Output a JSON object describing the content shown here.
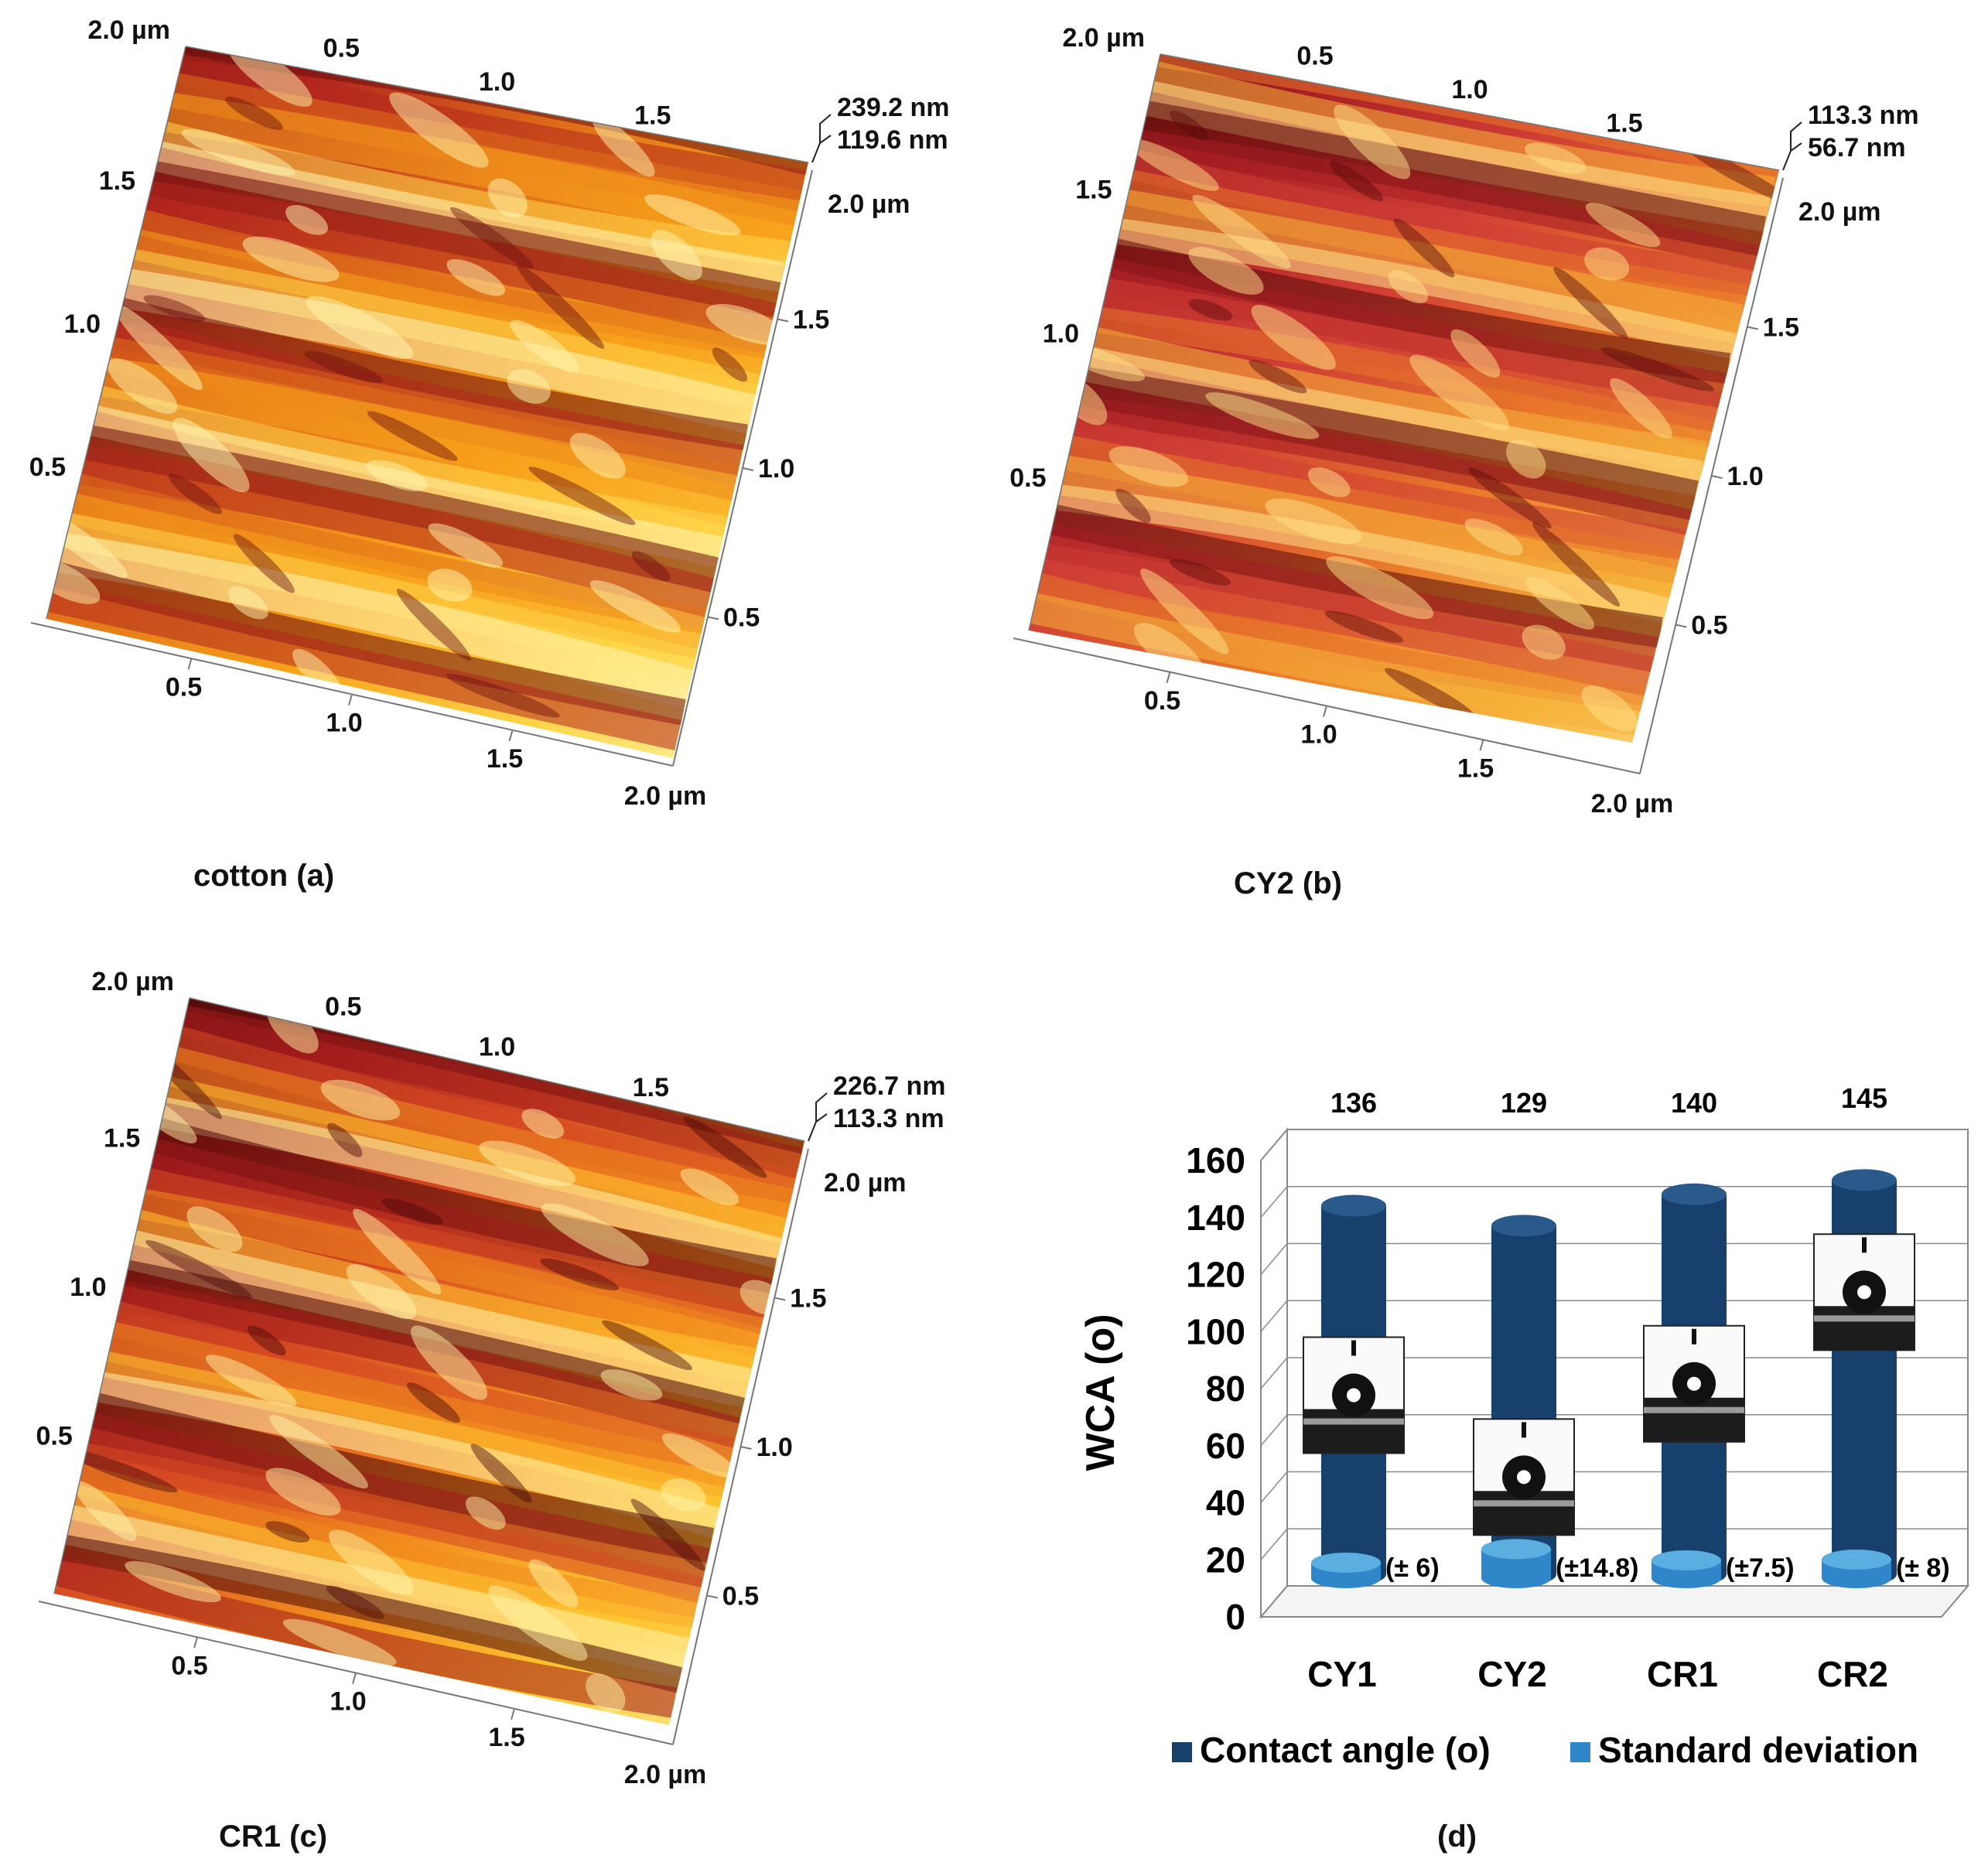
{
  "afm_panels": [
    {
      "id": "a",
      "caption": "cotton  (a)",
      "z_top": "239.2 nm",
      "z_mid": "119.6 nm",
      "corner_top_left": "2.0 µm",
      "top_ticks": [
        "0.5",
        "1.0",
        "1.5"
      ],
      "right_corner": "2.0 µm",
      "right_ticks": [
        "1.5",
        "1.0",
        "0.5"
      ],
      "left_ticks": [
        "1.5",
        "1.0",
        "0.5"
      ],
      "bottom_ticks": [
        "0.5",
        "1.0",
        "1.5"
      ],
      "bottom_corner": "2.0 µm",
      "palette": [
        "#6b0f0f",
        "#b3261e",
        "#e0701a",
        "#f7a21b",
        "#ffd54a",
        "#fff6b0"
      ]
    },
    {
      "id": "b",
      "caption": "CY2  (b)",
      "z_top": "113.3 nm",
      "z_mid": "56.7 nm",
      "corner_top_left": "2.0 µm",
      "top_ticks": [
        "0.5",
        "1.0",
        "1.5"
      ],
      "right_corner": "2.0 µm",
      "right_ticks": [
        "1.5",
        "1.0",
        "0.5"
      ],
      "left_ticks": [
        "1.5",
        "1.0",
        "0.5"
      ],
      "bottom_ticks": [
        "0.5",
        "1.0",
        "1.5"
      ],
      "bottom_corner": "2.0 µm",
      "palette": [
        "#5a0b0b",
        "#a61e22",
        "#cf3e34",
        "#e8762a",
        "#f6b23a",
        "#ffe28a"
      ]
    },
    {
      "id": "c",
      "caption": "CR1   (c)",
      "z_top": "226.7 nm",
      "z_mid": "113.3 nm",
      "corner_top_left": "2.0 µm",
      "top_ticks": [
        "0.5",
        "1.0",
        "1.5"
      ],
      "right_corner": "2.0 µm",
      "right_ticks": [
        "1.5",
        "1.0",
        "0.5"
      ],
      "left_ticks": [
        "1.5",
        "1.0",
        "0.5"
      ],
      "bottom_ticks": [
        "0.5",
        "1.0",
        "1.5"
      ],
      "bottom_corner": "2.0 µm",
      "palette": [
        "#4a0808",
        "#9e1b1b",
        "#d64a22",
        "#f08a1e",
        "#ffc531",
        "#fff3a8"
      ]
    }
  ],
  "chart_data": {
    "type": "bar",
    "style": "3d-cylinder",
    "caption": "(d)",
    "ylabel": "WCA (o)",
    "ylim": [
      0,
      160
    ],
    "yticks": [
      "0",
      "20",
      "40",
      "60",
      "80",
      "100",
      "120",
      "140",
      "160"
    ],
    "categories": [
      "CY1",
      "CY2",
      "CR1",
      "CR2"
    ],
    "series": [
      {
        "name": "Contact angle (o)",
        "color": "#17406d",
        "values": [
          136,
          129,
          140,
          145
        ]
      },
      {
        "name": "Standard deviation",
        "color": "#2f86c8",
        "values": [
          6,
          14.8,
          7.5,
          8
        ]
      }
    ],
    "value_labels": [
      "136",
      "129",
      "140",
      "145"
    ],
    "sd_labels": [
      "(± 6)",
      "(±14.8)",
      "(±7.5)",
      "(± 8)"
    ],
    "legend_position": "bottom"
  }
}
